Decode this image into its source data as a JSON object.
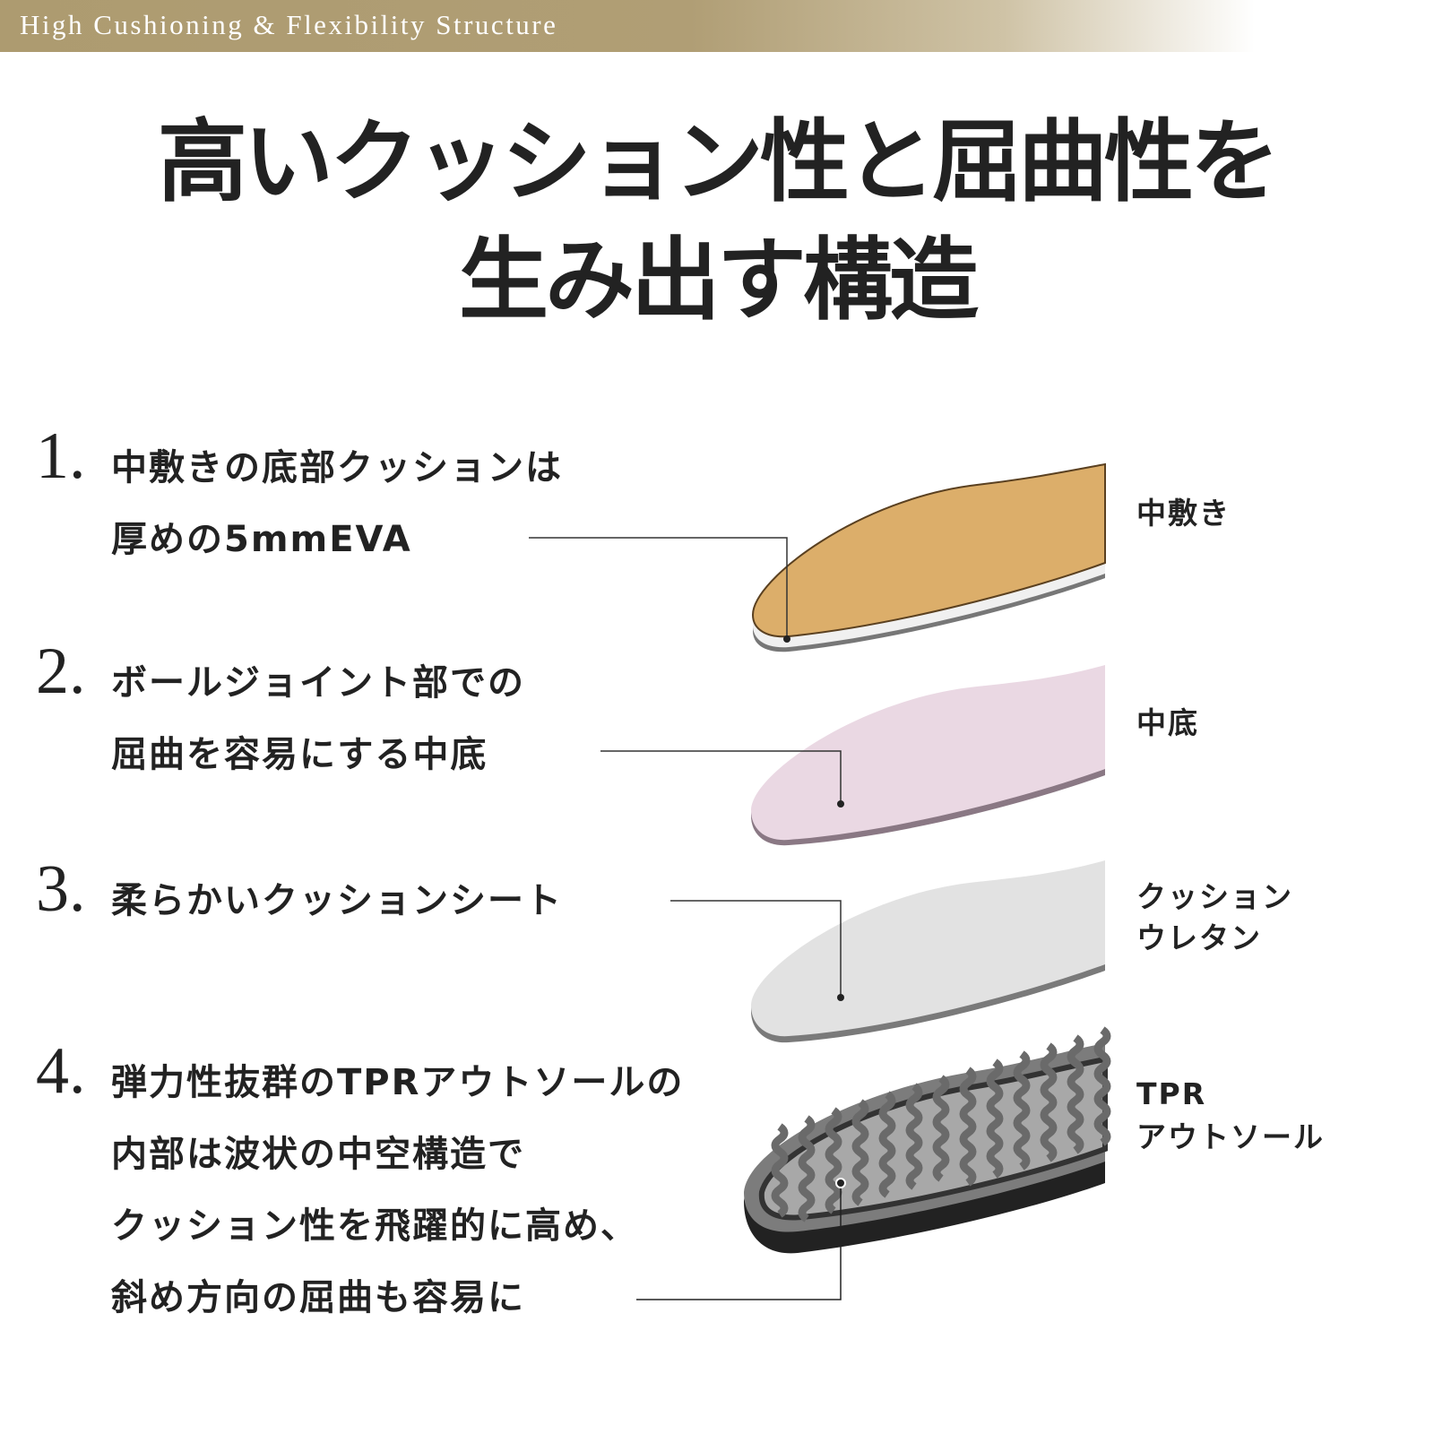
{
  "header": {
    "banner_text": "High Cushioning & Flexibility Structure"
  },
  "title": {
    "line1": "高いクッション性と屈曲性を",
    "line2": "生み出す構造"
  },
  "items": [
    {
      "number": "1.",
      "lines": [
        "中敷きの底部クッションは",
        "厚めの5mmEVA"
      ],
      "label": [
        "中敷き"
      ],
      "color": "#dcae6a"
    },
    {
      "number": "2.",
      "lines": [
        "ボールジョイント部での",
        "屈曲を容易にする中底"
      ],
      "label": [
        "中底"
      ],
      "color": "#ead8e3"
    },
    {
      "number": "3.",
      "lines": [
        "柔らかいクッションシート"
      ],
      "label": [
        "クッション",
        "ウレタン"
      ],
      "color": "#e2e2e2"
    },
    {
      "number": "4.",
      "lines": [
        "弾力性抜群のTPRアウトソールの",
        "内部は波状の中空構造で",
        "クッション性を飛躍的に高め、",
        "斜め方向の屈曲も容易に"
      ],
      "label": [
        "TPR",
        "アウトソール"
      ],
      "color": "#3a3a3a"
    }
  ]
}
